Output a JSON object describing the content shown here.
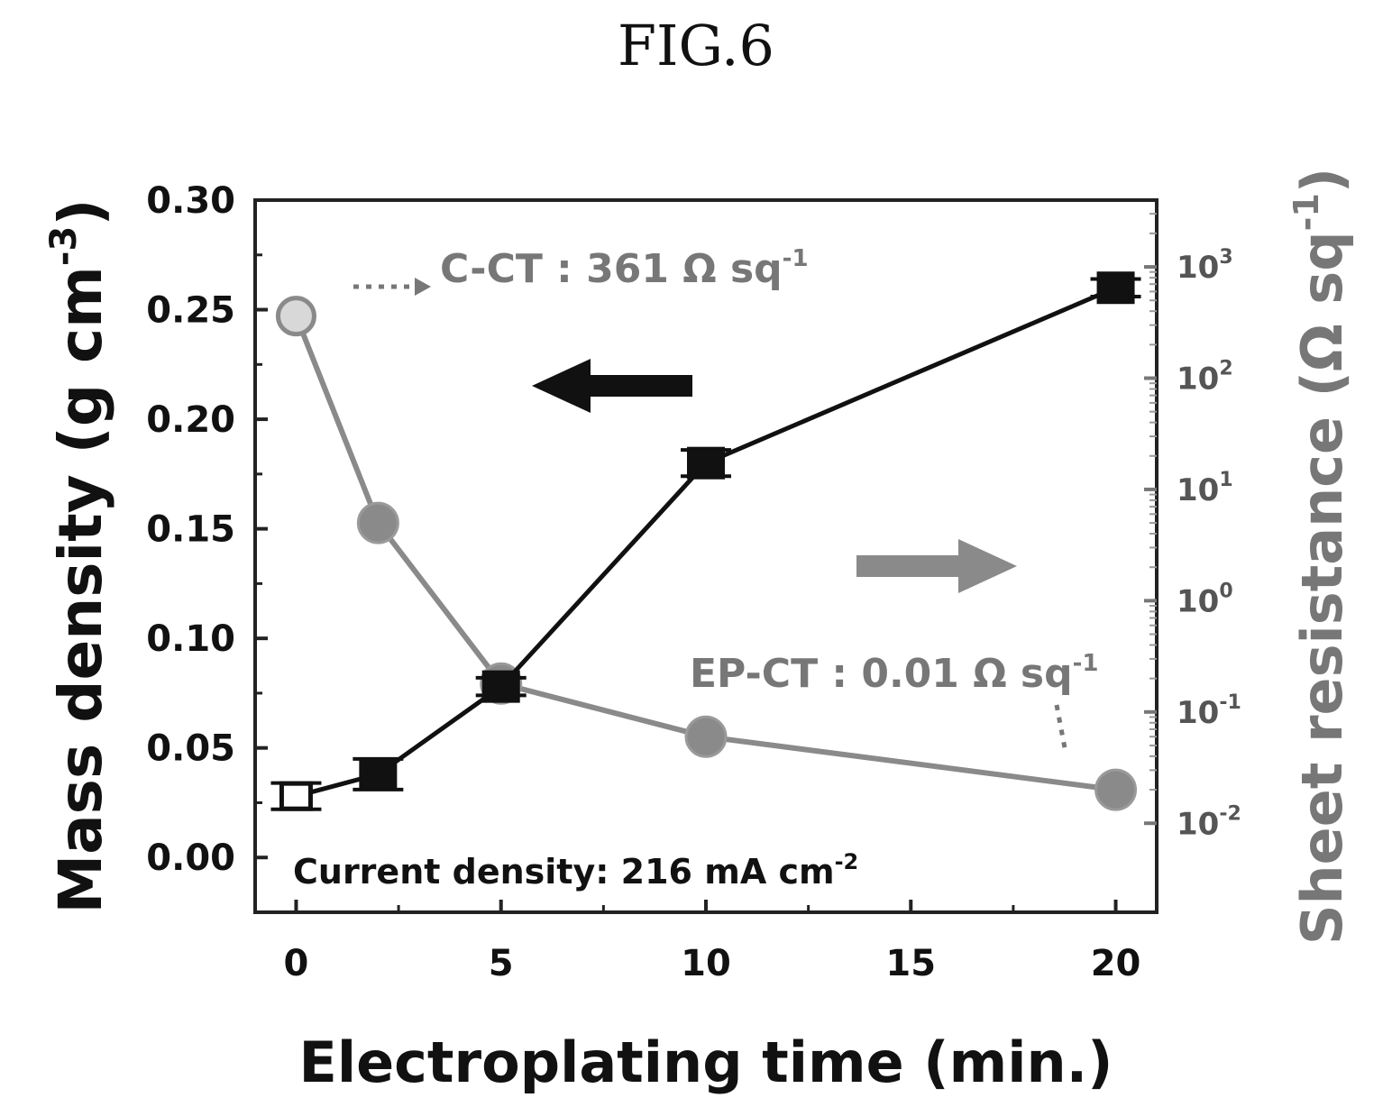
{
  "figure": {
    "label": "FIG.6"
  },
  "annotations": {
    "c_ct": "C-CT : 361 Ω sq",
    "c_ct_sup": "-1",
    "ep_ct": "EP-CT : 0.01 Ω sq",
    "ep_ct_sup": "-1",
    "current": "Current density: 216 mA cm",
    "current_sup": "-2"
  },
  "colors": {
    "mass_density": "#111111",
    "sheet_resistance": "#8a8a8a"
  },
  "chart_data": {
    "type": "line",
    "xlabel": "Electroplating time (min.)",
    "ylabel_left": {
      "text": "Mass density (g cm",
      "sup": "-3",
      "close": ")"
    },
    "ylabel_right": {
      "text": "Sheet resistance (Ω sq",
      "sup": "-1",
      "close": ")"
    },
    "xlim": [
      -1,
      21
    ],
    "x_ticks": [
      0,
      5,
      10,
      15,
      20
    ],
    "ylim_left": [
      -0.025,
      0.3
    ],
    "y_ticks_left": [
      "0.00",
      "0.05",
      "0.10",
      "0.15",
      "0.20",
      "0.25",
      "0.30"
    ],
    "ylim_right_log10": [
      -2.8,
      3.6
    ],
    "y_ticks_right": [
      {
        "exp": -2,
        "label": "10",
        "sup": "-2"
      },
      {
        "exp": -1,
        "label": "10",
        "sup": "-1"
      },
      {
        "exp": 0,
        "label": "10",
        "sup": "0"
      },
      {
        "exp": 1,
        "label": "10",
        "sup": "1"
      },
      {
        "exp": 2,
        "label": "10",
        "sup": "2"
      },
      {
        "exp": 3,
        "label": "10",
        "sup": "3"
      }
    ],
    "series": [
      {
        "axis": "left",
        "marker": "square",
        "x": [
          0,
          2,
          5,
          10,
          20
        ],
        "y": [
          0.028,
          0.038,
          0.078,
          0.18,
          0.26
        ],
        "yerr": [
          0.006,
          0.007,
          0.004,
          0.006,
          0.004
        ]
      },
      {
        "axis": "right",
        "marker": "circle",
        "x": [
          0,
          2,
          5,
          10,
          20
        ],
        "y": [
          361,
          5,
          0.18,
          0.06,
          0.02
        ]
      }
    ],
    "arrows": [
      {
        "direction": "left",
        "points_to": "left axis"
      },
      {
        "direction": "right",
        "points_to": "right axis"
      }
    ],
    "grid": false
  }
}
